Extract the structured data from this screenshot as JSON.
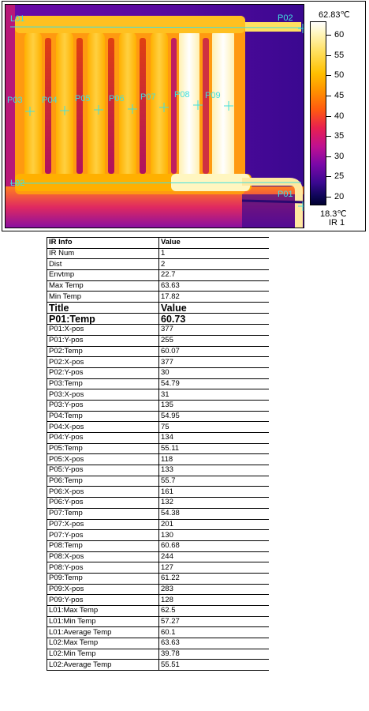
{
  "thermal": {
    "scale_max": "62.83℃",
    "scale_min": "18.3℃",
    "scale_id": "IR 1",
    "ticks": [
      "60",
      "55",
      "50",
      "45",
      "40",
      "35",
      "30",
      "25",
      "20"
    ],
    "points": [
      {
        "label": "P01"
      },
      {
        "label": "P02"
      },
      {
        "label": "P03"
      },
      {
        "label": "P04"
      },
      {
        "label": "P05"
      },
      {
        "label": "P06"
      },
      {
        "label": "P07"
      },
      {
        "label": "P08"
      },
      {
        "label": "P09"
      }
    ],
    "lines": [
      {
        "label": "L01"
      },
      {
        "label": "L02"
      }
    ],
    "colors": {
      "hot": "#ffffff",
      "warm": "#ffc000",
      "mid": "#ff6a00",
      "cool": "#7a08a8",
      "cold": "#10065a",
      "marker": "#40e0e0"
    }
  },
  "table": {
    "header": {
      "col1": "IR Info",
      "col2": "Value"
    },
    "info_rows": [
      {
        "k": "IR Num",
        "v": "1"
      },
      {
        "k": "Dist",
        "v": "2"
      },
      {
        "k": "Envtmp",
        "v": "22.7"
      },
      {
        "k": "Max Temp",
        "v": "63.63"
      },
      {
        "k": "Min Temp",
        "v": "17.82"
      }
    ],
    "title_row": {
      "k": "Title",
      "v": "Value"
    },
    "highlight_row": {
      "k": "P01:Temp",
      "v": "60.73"
    },
    "rows": [
      {
        "k": "P01:X-pos",
        "v": "377"
      },
      {
        "k": "P01:Y-pos",
        "v": "255"
      },
      {
        "k": "P02:Temp",
        "v": "60.07"
      },
      {
        "k": "P02:X-pos",
        "v": "377"
      },
      {
        "k": "P02:Y-pos",
        "v": "30"
      },
      {
        "k": "P03:Temp",
        "v": "54.79"
      },
      {
        "k": "P03:X-pos",
        "v": "31"
      },
      {
        "k": "P03:Y-pos",
        "v": "135"
      },
      {
        "k": "P04:Temp",
        "v": "54.95"
      },
      {
        "k": "P04:X-pos",
        "v": "75"
      },
      {
        "k": "P04:Y-pos",
        "v": "134"
      },
      {
        "k": "P05:Temp",
        "v": "55.11"
      },
      {
        "k": "P05:X-pos",
        "v": "118"
      },
      {
        "k": "P05:Y-pos",
        "v": "133"
      },
      {
        "k": "P06:Temp",
        "v": "55.7"
      },
      {
        "k": "P06:X-pos",
        "v": "161"
      },
      {
        "k": "P06:Y-pos",
        "v": "132"
      },
      {
        "k": "P07:Temp",
        "v": "54.38"
      },
      {
        "k": "P07:X-pos",
        "v": "201"
      },
      {
        "k": "P07:Y-pos",
        "v": "130"
      },
      {
        "k": "P08:Temp",
        "v": "60.68"
      },
      {
        "k": "P08:X-pos",
        "v": "244"
      },
      {
        "k": "P08:Y-pos",
        "v": "127"
      },
      {
        "k": "P09:Temp",
        "v": "61.22"
      },
      {
        "k": "P09:X-pos",
        "v": "283"
      },
      {
        "k": "P09:Y-pos",
        "v": "128"
      },
      {
        "k": "L01:Max Temp",
        "v": "62.5"
      },
      {
        "k": "L01:Min Temp",
        "v": "57.27"
      },
      {
        "k": "L01:Average Temp",
        "v": "60.1"
      },
      {
        "k": "L02:Max Temp",
        "v": "63.63"
      },
      {
        "k": "L02:Min Temp",
        "v": "39.78"
      },
      {
        "k": "L02:Average Temp",
        "v": "55.51"
      }
    ]
  }
}
